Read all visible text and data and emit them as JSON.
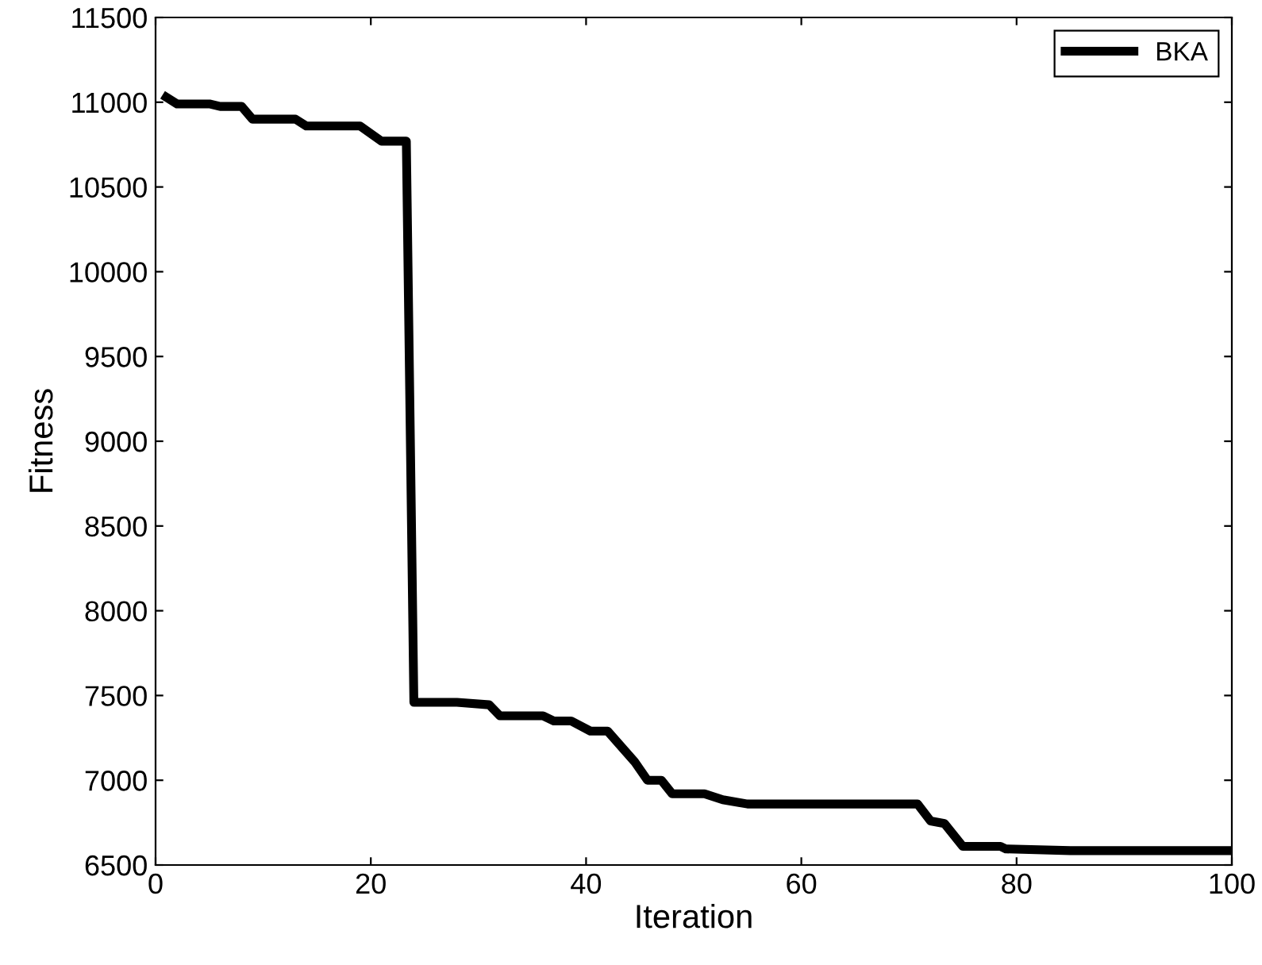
{
  "chart_data": {
    "type": "line",
    "xlabel": "Iteration",
    "ylabel": "Fitness",
    "xlim": [
      0,
      100
    ],
    "xticks": [
      0,
      20,
      40,
      60,
      80,
      100
    ],
    "ylim": [
      6500,
      11500
    ],
    "yticks": [
      6500,
      7000,
      7500,
      8000,
      8500,
      9000,
      9500,
      10000,
      10500,
      11000,
      11500
    ],
    "grid": false,
    "legend": "top right",
    "marker": "none",
    "line_style": "solid",
    "series": [
      {
        "name": "BKA",
        "color": "#000000",
        "x": [
          1,
          2,
          5,
          6,
          8,
          9,
          13,
          14,
          19,
          21,
          23,
          23.3,
          24,
          28,
          31,
          32,
          36,
          37,
          38.6,
          40.4,
          42,
          44.5,
          45.7,
          47,
          48,
          51,
          52.7,
          55,
          70.8,
          72,
          73.3,
          75,
          78.5,
          79,
          85,
          100
        ],
        "values": [
          11030,
          10990,
          10990,
          10975,
          10975,
          10900,
          10900,
          10860,
          10860,
          10770,
          10770,
          10770,
          7460,
          7460,
          7445,
          7380,
          7380,
          7350,
          7350,
          7290,
          7290,
          7110,
          7000,
          7000,
          6920,
          6920,
          6885,
          6860,
          6860,
          6760,
          6745,
          6610,
          6610,
          6595,
          6585,
          6585
        ]
      }
    ]
  }
}
